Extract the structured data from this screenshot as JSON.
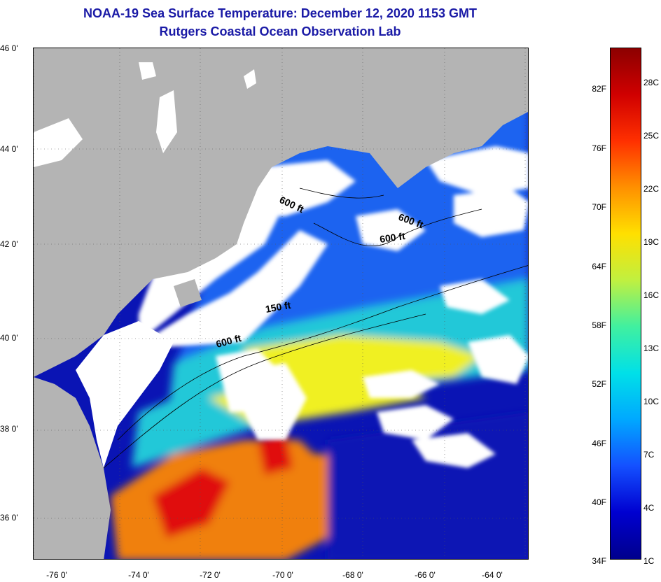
{
  "header": {
    "title": "NOAA-19 Sea Surface Temperature:  December 12, 2020 1153 GMT",
    "subtitle": "Rutgers Coastal Ocean Observation Lab"
  },
  "map": {
    "lat_labels": [
      "46 0'",
      "44 0'",
      "42 0'",
      "40 0'",
      "38 0'",
      "36 0'"
    ],
    "lon_labels": [
      "-76 0'",
      "-74 0'",
      "-72 0'",
      "-70 0'",
      "-68 0'",
      "-66 0'",
      "-64 0'"
    ],
    "contour_labels": [
      "600 ft",
      "600 ft",
      "600 ft",
      "150 ft",
      "600 ft"
    ],
    "colors": {
      "land": "#b4b4b4",
      "cloud": "#ffffff",
      "cold": "#0a14b4",
      "cool": "#1e64f0",
      "mid": "#20c8d8",
      "warm": "#f0f020",
      "hot": "#f08010",
      "hottest": "#e01010"
    }
  },
  "colorbar": {
    "fahrenheit_labels": [
      "82F",
      "76F",
      "70F",
      "64F",
      "58F",
      "52F",
      "46F",
      "40F",
      "34F"
    ],
    "celsius_labels": [
      "28C",
      "25C",
      "22C",
      "19C",
      "16C",
      "13C",
      "10C",
      "7C",
      "4C",
      "1C"
    ],
    "gradient": [
      "#00008c",
      "#0000d0",
      "#1450ff",
      "#00a8ff",
      "#00e0e8",
      "#40f0a0",
      "#c0f040",
      "#ffe000",
      "#ff9000",
      "#ff3000",
      "#d00000",
      "#8c0000"
    ]
  }
}
